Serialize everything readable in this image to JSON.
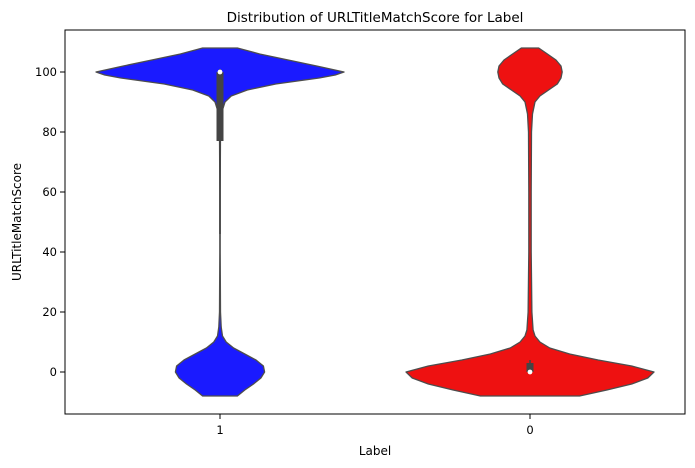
{
  "chart_data": {
    "type": "violin",
    "title": "Distribution of URLTitleMatchScore for Label",
    "xlabel": "Label",
    "ylabel": "URLTitleMatchScore",
    "categories": [
      "1",
      "0"
    ],
    "ylim": [
      -14,
      114
    ],
    "yticks": [
      0,
      20,
      40,
      60,
      80,
      100
    ],
    "grid": false,
    "series": [
      {
        "category": "1",
        "color": "#1a1aff",
        "outline": "#4d4d4d",
        "density_profile": [
          [
            -8,
            0.14
          ],
          [
            -6,
            0.2
          ],
          [
            -4,
            0.27
          ],
          [
            -2,
            0.33
          ],
          [
            0,
            0.36
          ],
          [
            2,
            0.35
          ],
          [
            4,
            0.29
          ],
          [
            6,
            0.2
          ],
          [
            8,
            0.11
          ],
          [
            10,
            0.05
          ],
          [
            12,
            0.02
          ],
          [
            15,
            0.01
          ],
          [
            20,
            0.004
          ],
          [
            40,
            0.002
          ],
          [
            60,
            0.002
          ],
          [
            80,
            0.004
          ],
          [
            86,
            0.01
          ],
          [
            90,
            0.04
          ],
          [
            92,
            0.09
          ],
          [
            94,
            0.22
          ],
          [
            96,
            0.45
          ],
          [
            98,
            0.8
          ],
          [
            99,
            0.93
          ],
          [
            100,
            1.0
          ],
          [
            102,
            0.78
          ],
          [
            104,
            0.55
          ],
          [
            106,
            0.32
          ],
          [
            108,
            0.14
          ]
        ],
        "box": {
          "q1": 77,
          "median": 100,
          "q3": 100,
          "whisker_low": 46,
          "whisker_high": 101
        }
      },
      {
        "category": "0",
        "color": "#ee1111",
        "outline": "#4d4d4d",
        "density_profile": [
          [
            -8,
            0.4
          ],
          [
            -6,
            0.62
          ],
          [
            -4,
            0.82
          ],
          [
            -2,
            0.95
          ],
          [
            0,
            1.0
          ],
          [
            2,
            0.82
          ],
          [
            4,
            0.55
          ],
          [
            6,
            0.32
          ],
          [
            8,
            0.16
          ],
          [
            10,
            0.08
          ],
          [
            12,
            0.04
          ],
          [
            14,
            0.025
          ],
          [
            20,
            0.015
          ],
          [
            40,
            0.01
          ],
          [
            60,
            0.01
          ],
          [
            80,
            0.012
          ],
          [
            86,
            0.02
          ],
          [
            90,
            0.04
          ],
          [
            92,
            0.08
          ],
          [
            94,
            0.15
          ],
          [
            96,
            0.22
          ],
          [
            98,
            0.25
          ],
          [
            100,
            0.26
          ],
          [
            102,
            0.25
          ],
          [
            104,
            0.21
          ],
          [
            106,
            0.14
          ],
          [
            108,
            0.07
          ]
        ],
        "box": {
          "q1": 0,
          "median": 0,
          "q3": 3,
          "whisker_low": 0,
          "whisker_high": 4
        }
      }
    ]
  }
}
